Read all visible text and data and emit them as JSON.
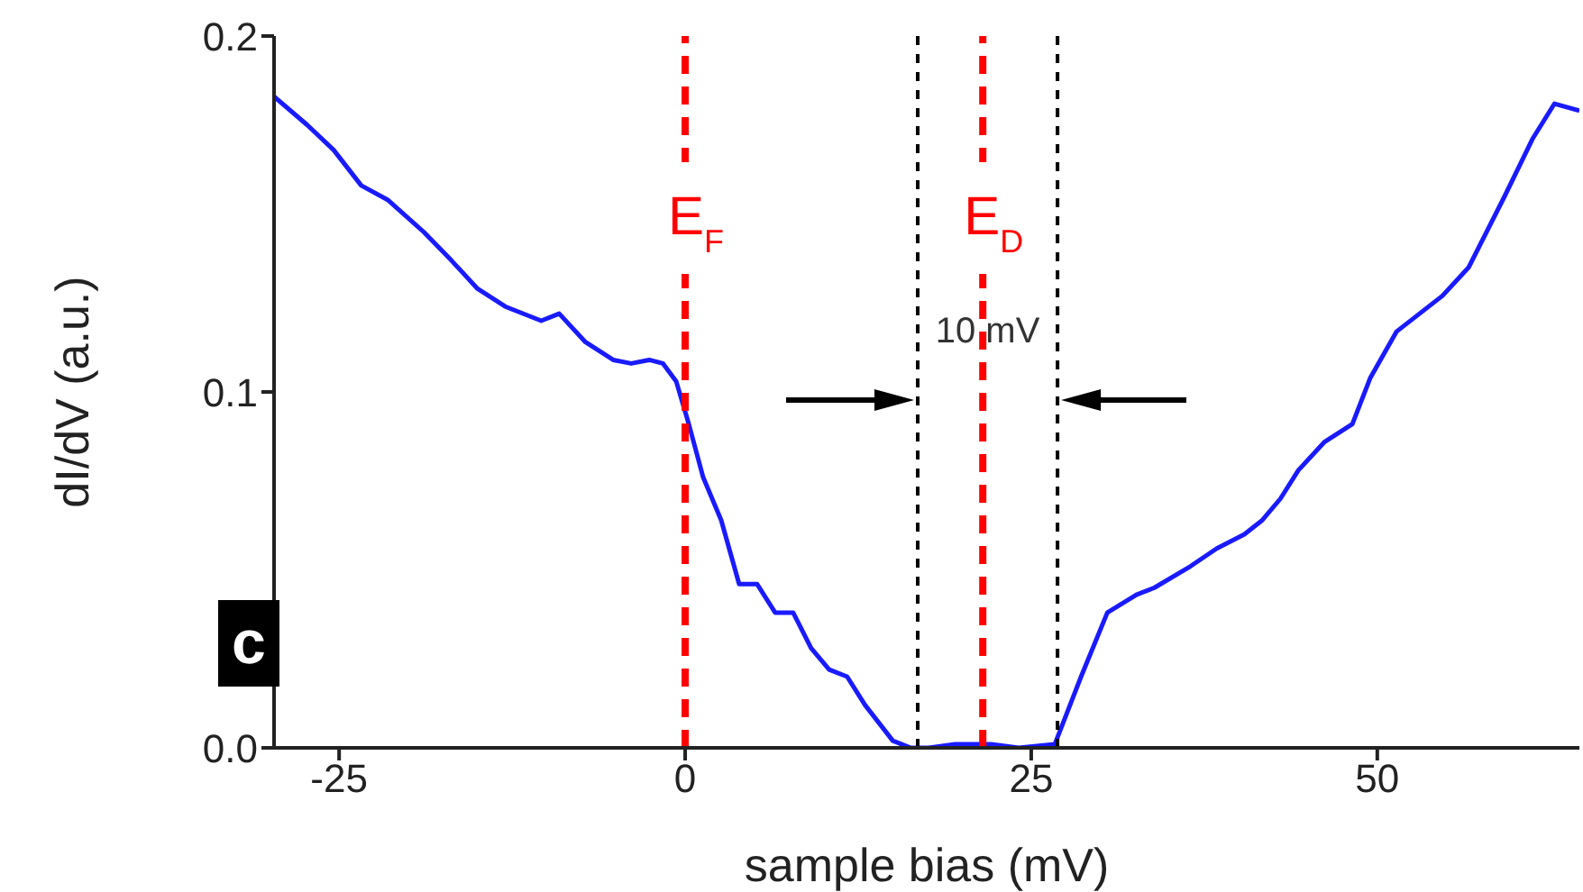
{
  "chart_data": {
    "type": "line",
    "xlabel": "sample bias (mV)",
    "ylabel": "dI/dV (a.u.)",
    "x": [
      -29.7,
      -27.3,
      -25.4,
      -23.4,
      -21.5,
      -18.9,
      -16.9,
      -15.0,
      -13.0,
      -10.4,
      -9.1,
      -7.2,
      -5.2,
      -3.9,
      -2.6,
      -1.6,
      -0.65,
      0.26,
      1.3,
      2.6,
      3.9,
      5.2,
      6.5,
      7.8,
      9.1,
      10.4,
      11.7,
      13.0,
      15.0,
      16.3,
      17.6,
      19.5,
      22.1,
      24.1,
      26.7,
      28.6,
      30.5,
      32.6,
      33.9,
      36.5,
      38.4,
      40.4,
      41.7,
      43.0,
      44.3,
      46.2,
      48.2,
      49.5,
      51.4,
      54.7,
      56.6,
      59.2,
      61.2,
      62.8,
      64.6
    ],
    "series": [
      {
        "color": "#1a1aff",
        "values": [
          0.183,
          0.175,
          0.168,
          0.158,
          0.154,
          0.145,
          0.137,
          0.129,
          0.124,
          0.12,
          0.122,
          0.114,
          0.109,
          0.108,
          0.109,
          0.108,
          0.103,
          0.091,
          0.076,
          0.064,
          0.046,
          0.046,
          0.038,
          0.038,
          0.028,
          0.022,
          0.02,
          0.012,
          0.002,
          0.0,
          0.0,
          0.001,
          0.001,
          0.0,
          0.001,
          0.02,
          0.038,
          0.043,
          0.045,
          0.051,
          0.056,
          0.06,
          0.064,
          0.07,
          0.078,
          0.086,
          0.091,
          0.104,
          0.117,
          0.127,
          0.135,
          0.155,
          0.171,
          0.181,
          0.179
        ]
      }
    ],
    "xlim": [
      -29.7,
      64.6
    ],
    "ylim": [
      0,
      0.2
    ],
    "xticks": [
      -25,
      0,
      25,
      50
    ],
    "yticks": [
      {
        "value": 0,
        "label": "0.0"
      },
      {
        "value": 0.1,
        "label": "0.1"
      },
      {
        "value": 0.2,
        "label": "0.2"
      }
    ],
    "ref_lines": [
      {
        "axis": "x",
        "value": 0,
        "label": "E$_{F}$",
        "color": "#ff0000",
        "line_style": "dashed"
      },
      {
        "axis": "x",
        "value": 21.5,
        "label": "E$_{D}$",
        "color": "#ff0000",
        "line_style": "dashed"
      },
      {
        "axis": "x",
        "value": 16.8,
        "color": "#000000",
        "line_style": "dotted"
      },
      {
        "axis": "x",
        "value": 26.9,
        "color": "#000000",
        "line_style": "dotted"
      }
    ],
    "annotations": [
      "10 mV",
      "c"
    ],
    "marker": "none",
    "line_style": "solid"
  }
}
